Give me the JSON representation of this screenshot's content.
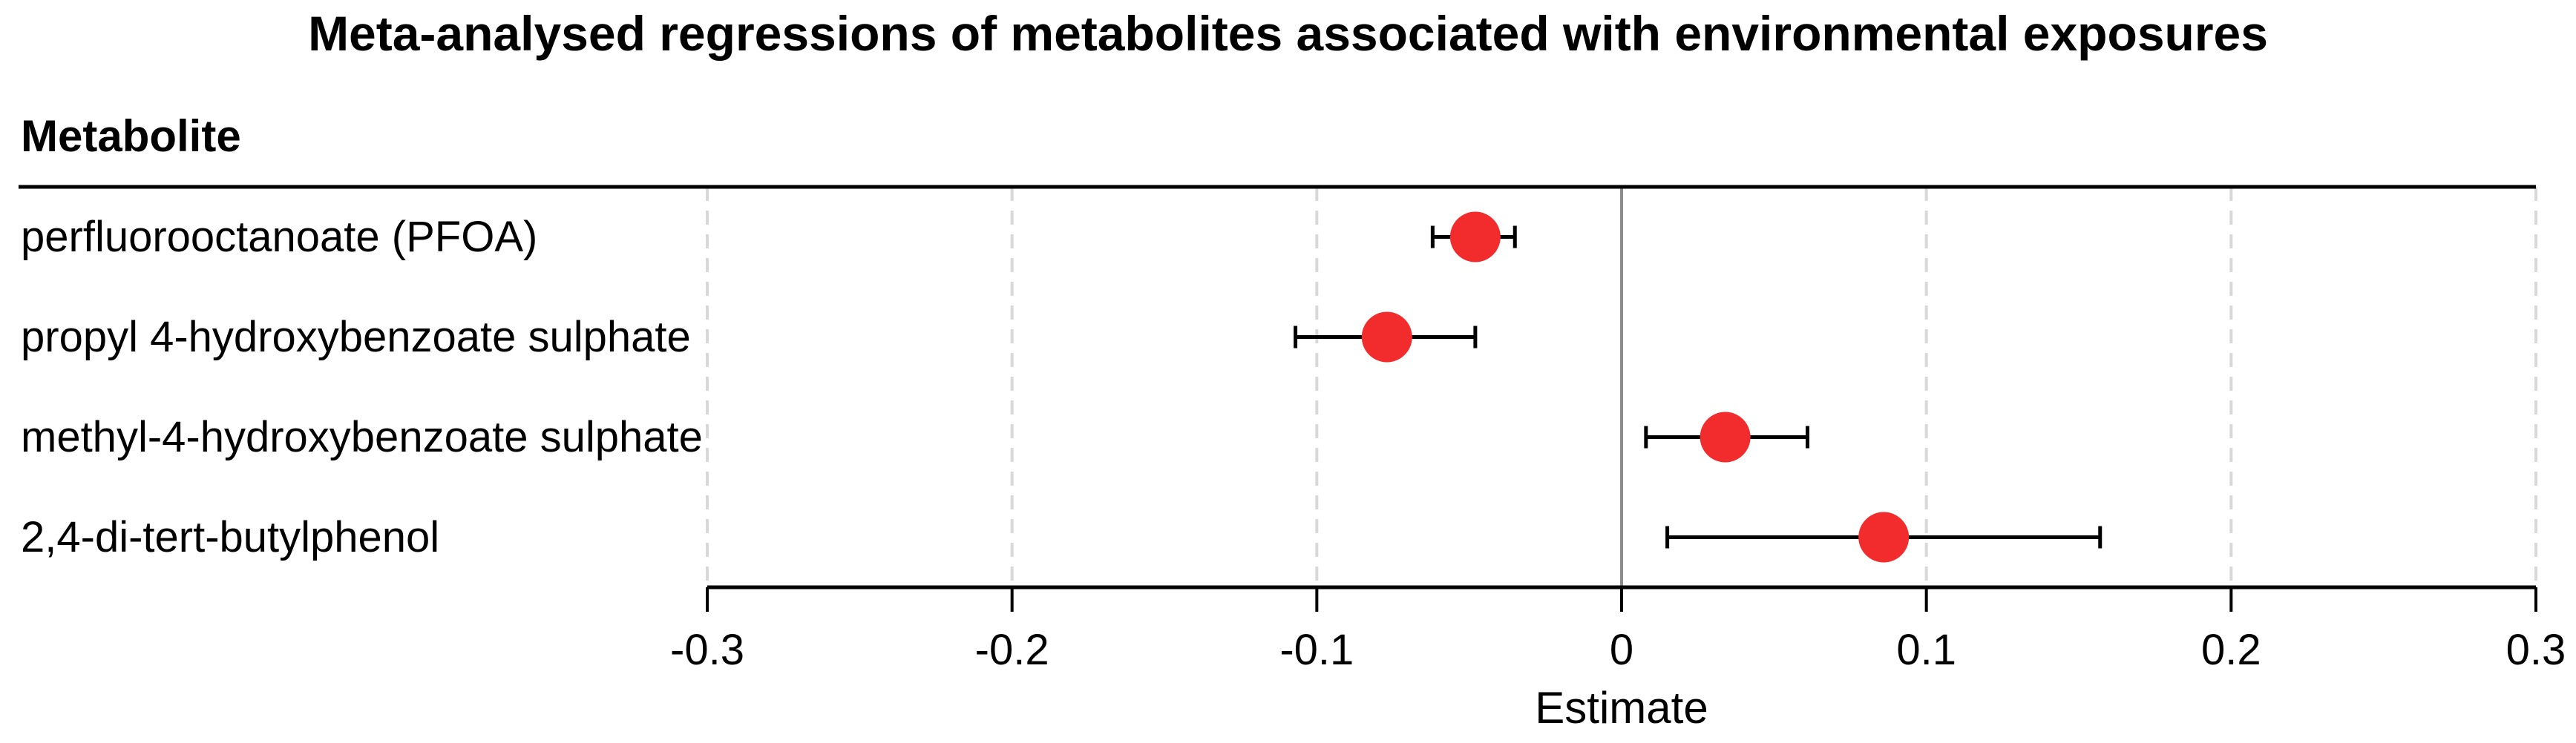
{
  "title": "Meta-analysed regressions of metabolites associated with environmental exposures",
  "column_header": "Metabolite",
  "chart_data": {
    "type": "scatter",
    "subtype": "forest-plot",
    "title": "Meta-analysed regressions of metabolites associated with environmental exposures",
    "xlabel": "Estimate",
    "ylabel": "Metabolite",
    "xlim": [
      -0.3,
      0.3
    ],
    "x_ticks": [
      -0.3,
      -0.2,
      -0.1,
      0,
      0.1,
      0.2,
      0.3
    ],
    "x_tick_labels": [
      "-0.3",
      "-0.2",
      "-0.1",
      "0",
      "0.1",
      "0.2",
      "0.3"
    ],
    "reference_line_x": 0,
    "grid": "vertical-dashed",
    "legend": null,
    "rows": [
      {
        "label": "perfluorooctanoate (PFOA)",
        "estimate": -0.048,
        "ci_low": -0.062,
        "ci_high": -0.035
      },
      {
        "label": "propyl 4-hydroxybenzoate sulphate",
        "estimate": -0.077,
        "ci_low": -0.107,
        "ci_high": -0.048
      },
      {
        "label": "methyl-4-hydroxybenzoate sulphate",
        "estimate": 0.034,
        "ci_low": 0.008,
        "ci_high": 0.061
      },
      {
        "label": "2,4-di-tert-butylphenol",
        "estimate": 0.086,
        "ci_low": 0.015,
        "ci_high": 0.157
      }
    ],
    "colors": {
      "point_fill": "#F22C2C",
      "error_bar": "#000000",
      "zero_line": "#8C8C8C",
      "gridline": "#D8D8D8",
      "axis": "#000000",
      "text": "#000000",
      "background": "#FFFFFF"
    }
  }
}
